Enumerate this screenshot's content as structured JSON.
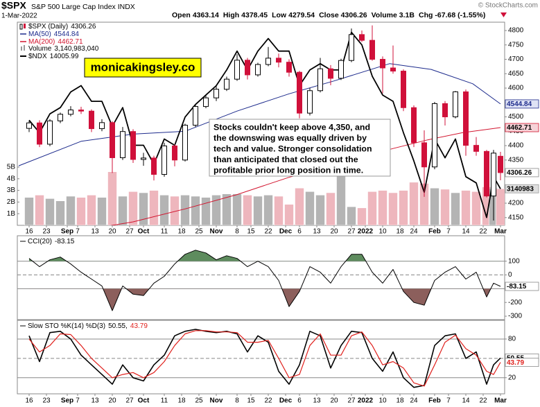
{
  "chart_data": [
    {
      "type": "candlestick",
      "title": "$SPX",
      "subtitle": "S&P 500 Large Cap Index INDX",
      "date": "1-Mar-2022",
      "credit": "© StockCharts.com",
      "watermark": "monicakingsley.co",
      "quote": [
        {
          "label": "Open",
          "value": 4363.14
        },
        {
          "label": "High",
          "value": 4378.45
        },
        {
          "label": "Low",
          "value": 4279.54
        },
        {
          "label": "Close",
          "value": 4306.26
        },
        {
          "label": "Volume",
          "value": "3.1B"
        },
        {
          "label": "Chg",
          "value": "-67.68 (-1.55%)"
        }
      ],
      "annotation_lines": [
        "Stocks couldn't keep above 4,350, and",
        "the downswing was equally driven by",
        "tech and value. Stronger consolidation",
        "than anticipated that closed out the",
        "profitable prior long position in time."
      ],
      "name": "$SPX (Daily)",
      "last": 4306.26,
      "up_color": "#000000",
      "down_color": "#d0103a",
      "xlim": [
        -3.4,
        137.2
      ],
      "xticks": [
        {
          "value": 0,
          "label": "16"
        },
        {
          "value": 5,
          "label": "23"
        },
        {
          "value": 11,
          "label": "Sep",
          "bold": true
        },
        {
          "value": 14,
          "label": "7"
        },
        {
          "value": 19,
          "label": "13"
        },
        {
          "value": 24,
          "label": "20"
        },
        {
          "value": 29,
          "label": "27"
        },
        {
          "value": 33,
          "label": "Oct",
          "bold": true
        },
        {
          "value": 39,
          "label": "11"
        },
        {
          "value": 44,
          "label": "18"
        },
        {
          "value": 49,
          "label": "25"
        },
        {
          "value": 54,
          "label": "Nov",
          "bold": true
        },
        {
          "value": 60,
          "label": "8"
        },
        {
          "value": 64,
          "label": "15"
        },
        {
          "value": 69,
          "label": "22"
        },
        {
          "value": 74,
          "label": "Dec",
          "bold": true
        },
        {
          "value": 78,
          "label": "6"
        },
        {
          "value": 83,
          "label": "13"
        },
        {
          "value": 88,
          "label": "20"
        },
        {
          "value": 93,
          "label": "27"
        },
        {
          "value": 97,
          "label": "2022",
          "bold": true
        },
        {
          "value": 102,
          "label": "10"
        },
        {
          "value": 107,
          "label": "18"
        },
        {
          "value": 111,
          "label": "24"
        },
        {
          "value": 117,
          "label": "Feb",
          "bold": true
        },
        {
          "value": 121,
          "label": "7"
        },
        {
          "value": 126,
          "label": "14"
        },
        {
          "value": 131,
          "label": "22"
        },
        {
          "value": 136,
          "label": "Mar",
          "bold": true
        }
      ],
      "ylim": [
        4123,
        4829
      ],
      "yticks": [
        4150,
        4200,
        4250,
        4300,
        4350,
        4400,
        4450,
        4500,
        4550,
        4600,
        4650,
        4700,
        4750,
        4800
      ],
      "y2lim": [
        13424,
        16661
      ],
      "x": [
        0,
        3,
        6,
        9,
        12,
        15,
        18,
        21,
        24,
        27,
        30,
        33,
        36,
        39,
        42,
        45,
        48,
        51,
        54,
        57,
        60,
        63,
        66,
        69,
        72,
        75,
        78,
        81,
        84,
        87,
        90,
        93,
        96,
        99,
        102,
        105,
        108,
        111,
        114,
        117,
        120,
        123,
        126,
        129,
        132,
        134,
        136
      ],
      "open": [
        4460,
        4479,
        4405,
        4486,
        4509,
        4524,
        4520,
        4459,
        4480,
        4358,
        4449,
        4352,
        4357,
        4300,
        4399,
        4350,
        4471,
        4536,
        4566,
        4596,
        4631,
        4697,
        4646,
        4682,
        4704,
        4690,
        4655,
        4513,
        4591,
        4667,
        4634,
        4696,
        4786,
        4766,
        4700,
        4670,
        4659,
        4532,
        4410,
        4326,
        4546,
        4500,
        4587,
        4401,
        4380,
        4225,
        4363.14
      ],
      "high": [
        4486,
        4488,
        4492,
        4515,
        4537,
        4535,
        4526,
        4492,
        4485,
        4465,
        4457,
        4375,
        4365,
        4410,
        4405,
        4476,
        4540,
        4574,
        4606,
        4640,
        4718,
        4705,
        4688,
        4743,
        4720,
        4700,
        4660,
        4600,
        4705,
        4680,
        4702,
        4807,
        4800,
        4818,
        4710,
        4748,
        4665,
        4540,
        4453,
        4552,
        4555,
        4590,
        4595,
        4430,
        4385,
        4385,
        4378.45
      ],
      "low": [
        4447,
        4395,
        4398,
        4478,
        4502,
        4510,
        4447,
        4450,
        4305,
        4350,
        4340,
        4330,
        4279,
        4292,
        4328,
        4345,
        4465,
        4530,
        4555,
        4590,
        4625,
        4630,
        4640,
        4676,
        4672,
        4640,
        4495,
        4505,
        4585,
        4610,
        4628,
        4690,
        4760,
        4695,
        4582,
        4650,
        4520,
        4395,
        4222,
        4318,
        4470,
        4495,
        4365,
        4365,
        4220,
        4140,
        4279.54
      ],
      "close": [
        4479,
        4405,
        4486,
        4509,
        4524,
        4520,
        4459,
        4480,
        4358,
        4449,
        4352,
        4357,
        4300,
        4399,
        4350,
        4471,
        4536,
        4566,
        4596,
        4631,
        4697,
        4646,
        4682,
        4704,
        4690,
        4655,
        4513,
        4591,
        4667,
        4634,
        4696,
        4786,
        4766,
        4700,
        4670,
        4659,
        4532,
        4410,
        4326,
        4546,
        4500,
        4587,
        4401,
        4380,
        4225,
        4374,
        4306.26
      ],
      "overlays": [
        {
          "name": "MA(50)",
          "color": "#1c2a8c",
          "last": 4544.84,
          "x": [
            -3,
            15,
            30,
            45,
            60,
            75,
            88,
            104,
            116,
            128,
            136
          ],
          "values": [
            4330,
            4415,
            4440,
            4450,
            4520,
            4580,
            4625,
            4685,
            4665,
            4615,
            4544.84
          ]
        },
        {
          "name": "MA(200)",
          "color": "#d2142e",
          "last": 4462.71,
          "x": [
            -3,
            15,
            30,
            45,
            60,
            75,
            90,
            105,
            115,
            125,
            136
          ],
          "values": [
            4075,
            4105,
            4135,
            4180,
            4230,
            4290,
            4340,
            4390,
            4420,
            4445,
            4462.71
          ]
        },
        {
          "name": "$NDX",
          "color": "#000000",
          "last": 14005.99,
          "axis": "y2",
          "x": [
            0,
            3,
            6,
            9,
            12,
            15,
            18,
            21,
            24,
            27,
            30,
            33,
            36,
            39,
            42,
            45,
            48,
            51,
            54,
            57,
            60,
            63,
            66,
            69,
            72,
            75,
            78,
            81,
            84,
            87,
            90,
            93,
            96,
            99,
            102,
            105,
            108,
            111,
            114,
            117,
            120,
            123,
            126,
            129,
            132,
            134,
            136
          ],
          "values": [
            15100,
            14900,
            15200,
            15300,
            15550,
            15650,
            15400,
            15400,
            15000,
            15300,
            14700,
            14700,
            14400,
            14800,
            14700,
            15150,
            15350,
            15500,
            15650,
            15900,
            16200,
            15900,
            16200,
            16400,
            16200,
            16200,
            15650,
            15900,
            16000,
            15900,
            15900,
            16500,
            16300,
            15800,
            15500,
            15400,
            14900,
            14450,
            13950,
            14800,
            14500,
            14800,
            14200,
            14100,
            13550,
            14200,
            14005.99
          ]
        }
      ],
      "volume": {
        "name": "Volume",
        "last": 3140983040,
        "last_label": "3,140,983,040",
        "tag_label": "3140983",
        "up_color": "#b4b4b4",
        "down_color": "#eeb6bd",
        "ylim": [
          0,
          17440000000
        ],
        "yticks": [
          {
            "value": 1000000000,
            "label": "1B"
          },
          {
            "value": 2000000000,
            "label": "2B"
          },
          {
            "value": 3000000000,
            "label": "3B"
          },
          {
            "value": 4000000000,
            "label": "4B"
          },
          {
            "value": 5000000000,
            "label": "5B"
          }
        ],
        "values": [
          2400000000,
          2600000000,
          2300000000,
          2100000000,
          2500000000,
          2400000000,
          2600000000,
          2400000000,
          4600000000,
          2500000000,
          2900000000,
          2800000000,
          3000000000,
          2600000000,
          2500000000,
          2600000000,
          2500000000,
          2400000000,
          2600000000,
          2700000000,
          2700000000,
          2600000000,
          2500000000,
          2600000000,
          2500000000,
          1800000000,
          3200000000,
          2900000000,
          2600000000,
          2800000000,
          4400000000,
          1600000000,
          1500000000,
          2900000000,
          3000000000,
          2800000000,
          3000000000,
          3700000000,
          3600000000,
          3200000000,
          3100000000,
          2800000000,
          3000000000,
          2900000000,
          3300000000,
          3200000000,
          3140983040
        ]
      }
    },
    {
      "type": "line",
      "name": "CCI(20)",
      "last": -83.15,
      "color": "#000000",
      "upper_band": 100,
      "lower_band": -100,
      "midline": 0,
      "upper_fill": "#5e8c5e",
      "lower_fill": "#8c5f5c",
      "xlim": [
        -3.4,
        137.2
      ],
      "ylim": [
        -325,
        285
      ],
      "yticks": [
        100,
        0,
        -100,
        -200,
        -300
      ],
      "x": [
        0,
        3,
        6,
        9,
        12,
        15,
        18,
        21,
        24,
        27,
        30,
        33,
        36,
        39,
        42,
        45,
        48,
        51,
        54,
        57,
        60,
        63,
        66,
        69,
        72,
        75,
        78,
        81,
        84,
        87,
        90,
        93,
        96,
        99,
        102,
        105,
        108,
        111,
        114,
        117,
        120,
        123,
        126,
        129,
        132,
        134,
        136
      ],
      "values": [
        120,
        60,
        110,
        130,
        80,
        20,
        -30,
        -80,
        -260,
        -80,
        -140,
        -150,
        -60,
        -10,
        80,
        150,
        180,
        160,
        110,
        140,
        120,
        60,
        100,
        60,
        -40,
        -230,
        -120,
        60,
        20,
        -60,
        60,
        150,
        150,
        20,
        -60,
        40,
        -120,
        -200,
        -220,
        -40,
        20,
        60,
        -30,
        20,
        -160,
        -60,
        -83.15
      ]
    },
    {
      "type": "line",
      "name": "Slow STO %K(14) %D(3)",
      "upper_band": 80,
      "lower_band": 20,
      "midline": 50,
      "xlim": [
        -3.4,
        137.2
      ],
      "ylim": [
        -5,
        109
      ],
      "yticks": [
        80,
        20
      ],
      "x": [
        0,
        3,
        6,
        9,
        12,
        15,
        18,
        21,
        24,
        27,
        30,
        33,
        36,
        39,
        42,
        45,
        48,
        51,
        54,
        57,
        60,
        63,
        66,
        69,
        72,
        75,
        78,
        81,
        84,
        87,
        90,
        93,
        96,
        99,
        102,
        105,
        108,
        111,
        114,
        117,
        120,
        123,
        126,
        129,
        132,
        134,
        136
      ],
      "series": [
        {
          "color": "#000000",
          "last": 50.55,
          "values": [
            85,
            45,
            90,
            92,
            80,
            55,
            40,
            25,
            10,
            40,
            20,
            15,
            40,
            55,
            85,
            92,
            95,
            92,
            90,
            92,
            88,
            60,
            85,
            75,
            30,
            10,
            40,
            92,
            85,
            35,
            70,
            92,
            90,
            50,
            30,
            60,
            20,
            5,
            8,
            70,
            85,
            88,
            50,
            60,
            10,
            40,
            50.55
          ]
        },
        {
          "color": "#e0201c",
          "last": 43.79,
          "values": [
            80,
            60,
            70,
            88,
            87,
            70,
            50,
            35,
            20,
            25,
            28,
            20,
            28,
            45,
            70,
            88,
            93,
            93,
            91,
            91,
            90,
            75,
            75,
            78,
            50,
            20,
            25,
            70,
            88,
            55,
            55,
            85,
            91,
            70,
            40,
            45,
            35,
            12,
            7,
            40,
            75,
            86,
            65,
            55,
            30,
            25,
            43.79
          ]
        }
      ]
    }
  ]
}
